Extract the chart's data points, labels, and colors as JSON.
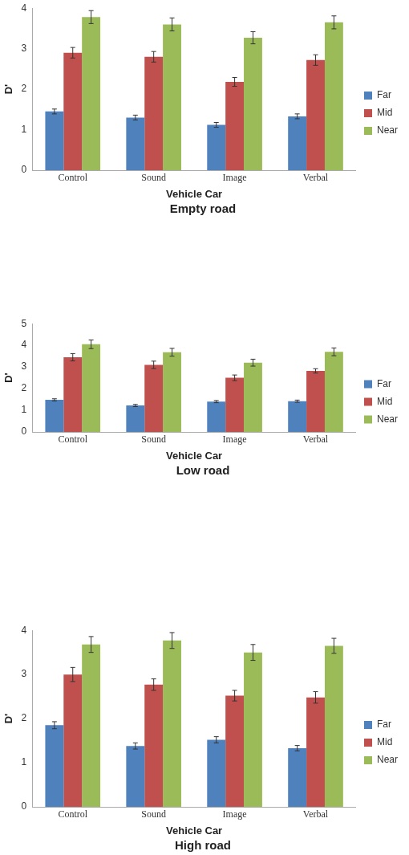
{
  "chart_data": [
    {
      "type": "bar",
      "title": "Empty road",
      "xlabel": "Vehicle Car",
      "ylabel": "D'",
      "categories": [
        "Control",
        "Sound",
        "Image",
        "Verbal"
      ],
      "series": [
        {
          "name": "Far",
          "color": "#4f81bd",
          "values": [
            1.45,
            1.3,
            1.12,
            1.33
          ],
          "errors": [
            0.06,
            0.06,
            0.06,
            0.06
          ]
        },
        {
          "name": "Mid",
          "color": "#c0504d",
          "values": [
            2.9,
            2.8,
            2.18,
            2.72
          ],
          "errors": [
            0.13,
            0.13,
            0.11,
            0.13
          ]
        },
        {
          "name": "Near",
          "color": "#9bbb59",
          "values": [
            3.78,
            3.6,
            3.27,
            3.65
          ],
          "errors": [
            0.16,
            0.16,
            0.15,
            0.16
          ]
        }
      ],
      "ylim": [
        0,
        4
      ],
      "yticks": [
        0,
        1,
        2,
        3,
        4
      ],
      "grid": false,
      "legend": "right"
    },
    {
      "type": "bar",
      "title": "Low road",
      "xlabel": "Vehicle Car",
      "ylabel": "D'",
      "categories": [
        "Control",
        "Sound",
        "Image",
        "Verbal"
      ],
      "series": [
        {
          "name": "Far",
          "color": "#4f81bd",
          "values": [
            1.48,
            1.22,
            1.4,
            1.42
          ],
          "errors": [
            0.05,
            0.05,
            0.05,
            0.05
          ]
        },
        {
          "name": "Mid",
          "color": "#c0504d",
          "values": [
            3.45,
            3.1,
            2.5,
            2.82
          ],
          "errors": [
            0.17,
            0.17,
            0.13,
            0.1
          ]
        },
        {
          "name": "Near",
          "color": "#9bbb59",
          "values": [
            4.05,
            3.68,
            3.2,
            3.7
          ],
          "errors": [
            0.2,
            0.18,
            0.16,
            0.18
          ]
        }
      ],
      "ylim": [
        0,
        5
      ],
      "yticks": [
        0,
        1,
        2,
        3,
        4,
        5
      ],
      "grid": false,
      "legend": "right"
    },
    {
      "type": "bar",
      "title": "High road",
      "xlabel": "Vehicle Car",
      "ylabel": "D'",
      "categories": [
        "Control",
        "Sound",
        "Image",
        "Verbal"
      ],
      "series": [
        {
          "name": "Far",
          "color": "#4f81bd",
          "values": [
            1.85,
            1.38,
            1.52,
            1.33
          ],
          "errors": [
            0.08,
            0.07,
            0.07,
            0.06
          ]
        },
        {
          "name": "Mid",
          "color": "#c0504d",
          "values": [
            3.0,
            2.77,
            2.52,
            2.48
          ],
          "errors": [
            0.16,
            0.13,
            0.12,
            0.13
          ]
        },
        {
          "name": "Near",
          "color": "#9bbb59",
          "values": [
            3.68,
            3.77,
            3.5,
            3.65
          ],
          "errors": [
            0.18,
            0.18,
            0.18,
            0.17
          ]
        }
      ],
      "ylim": [
        0,
        4
      ],
      "yticks": [
        0,
        1,
        2,
        3,
        4
      ],
      "grid": false,
      "legend": "right"
    }
  ]
}
